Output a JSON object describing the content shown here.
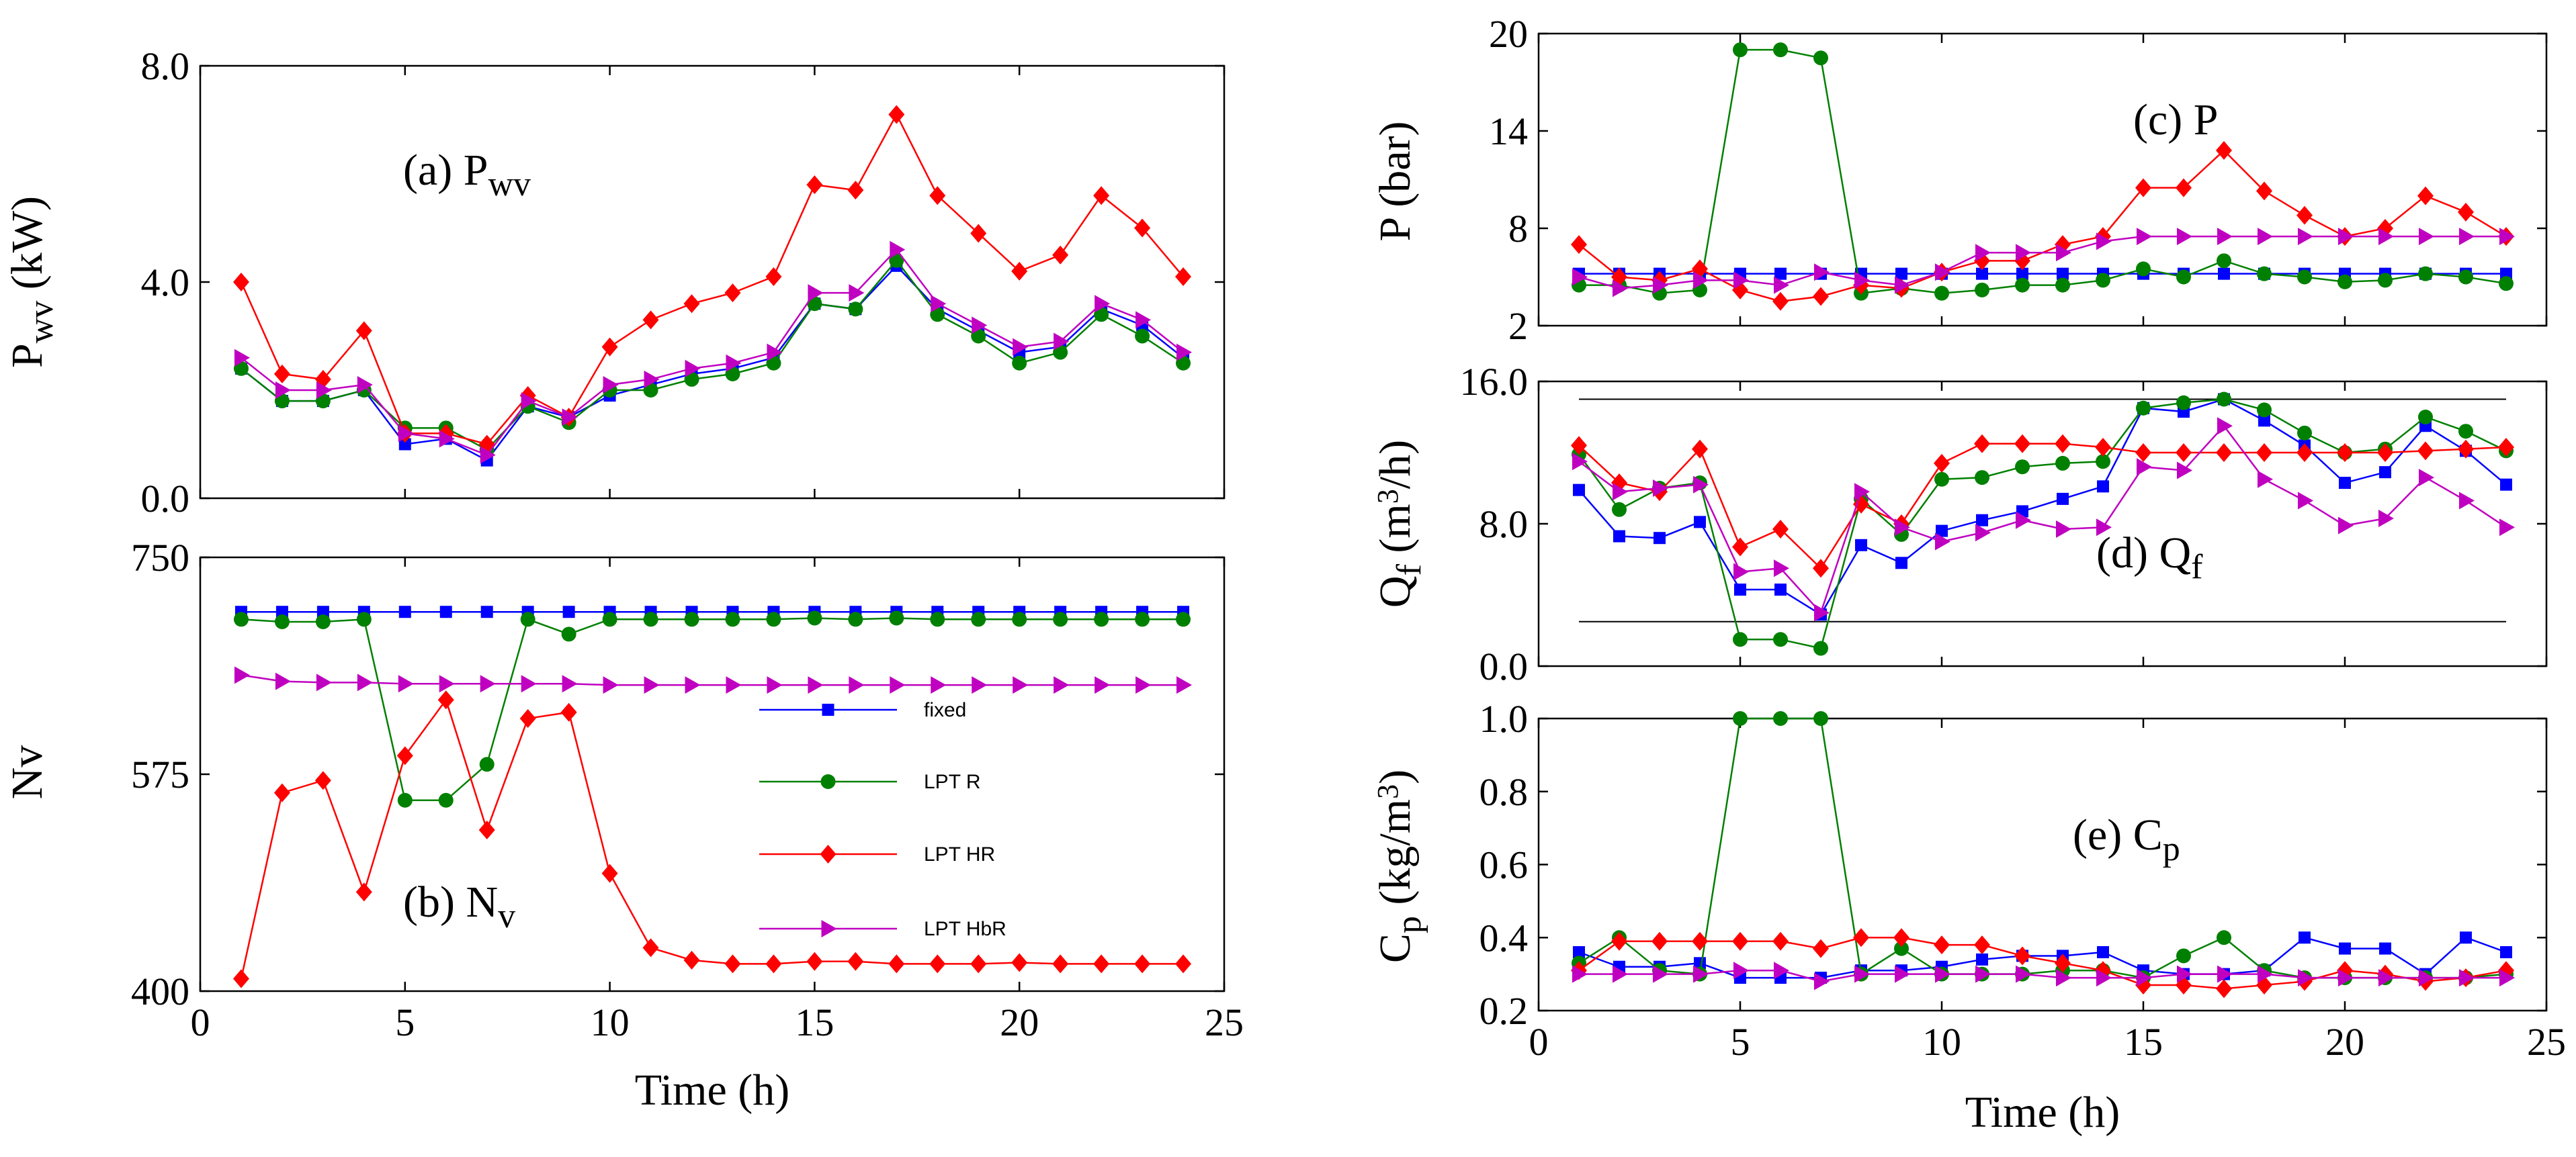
{
  "chart_data": [
    {
      "id": "pwv",
      "type": "line",
      "panel_label": {
        "main": "(a) P",
        "sub": "wv"
      },
      "ylabel": {
        "main": "P",
        "sub": "wv",
        "rest": "(kW)"
      },
      "xlabel": "",
      "xlim": [
        0,
        25
      ],
      "ylim": [
        0,
        8
      ],
      "yticks": [
        "0.0",
        "4.0",
        "8.0"
      ],
      "ytick_values": [
        0,
        4,
        8
      ],
      "x": [
        1,
        2,
        3,
        4,
        5,
        6,
        7,
        8,
        9,
        10,
        11,
        12,
        13,
        14,
        15,
        16,
        17,
        18,
        19,
        20,
        21,
        22,
        23,
        24
      ],
      "series": [
        {
          "name": "fixed",
          "values": [
            2.4,
            1.8,
            1.8,
            2.0,
            1.0,
            1.1,
            0.7,
            1.7,
            1.5,
            1.9,
            2.1,
            2.3,
            2.4,
            2.6,
            3.6,
            3.5,
            4.3,
            3.5,
            3.1,
            2.7,
            2.8,
            3.5,
            3.2,
            2.6
          ]
        },
        {
          "name": "LPTR",
          "values": [
            2.4,
            1.8,
            1.8,
            2.0,
            1.3,
            1.3,
            0.9,
            1.7,
            1.4,
            2.0,
            2.0,
            2.2,
            2.3,
            2.5,
            3.6,
            3.5,
            4.4,
            3.4,
            3.0,
            2.5,
            2.7,
            3.4,
            3.0,
            2.5
          ]
        },
        {
          "name": "LPTHR",
          "values": [
            4.0,
            2.3,
            2.2,
            3.1,
            1.2,
            1.2,
            1.0,
            1.9,
            1.5,
            2.8,
            3.3,
            3.6,
            3.8,
            4.1,
            5.8,
            5.7,
            7.1,
            5.6,
            4.9,
            4.2,
            4.5,
            5.6,
            5.0,
            4.1
          ]
        },
        {
          "name": "LPTHbR",
          "values": [
            2.6,
            2.0,
            2.0,
            2.1,
            1.2,
            1.1,
            0.8,
            1.8,
            1.5,
            2.1,
            2.2,
            2.4,
            2.5,
            2.7,
            3.8,
            3.8,
            4.6,
            3.6,
            3.2,
            2.8,
            2.9,
            3.6,
            3.3,
            2.7
          ]
        }
      ]
    },
    {
      "id": "nv",
      "type": "line",
      "panel_label": {
        "main": "(b) N",
        "sub": "v"
      },
      "ylabel": {
        "main": "Nv"
      },
      "xlabel": "Time (h)",
      "xlim": [
        0,
        25
      ],
      "ylim": [
        400,
        750
      ],
      "yticks": [
        "400",
        "575",
        "750"
      ],
      "ytick_values": [
        400,
        575,
        750
      ],
      "xticks": [
        "0",
        "5",
        "10",
        "15",
        "20",
        "25"
      ],
      "xtick_values": [
        0,
        5,
        10,
        15,
        20,
        25
      ],
      "x": [
        1,
        2,
        3,
        4,
        5,
        6,
        7,
        8,
        9,
        10,
        11,
        12,
        13,
        14,
        15,
        16,
        17,
        18,
        19,
        20,
        21,
        22,
        23,
        24
      ],
      "series": [
        {
          "name": "fixed",
          "values": [
            706,
            706,
            706,
            706,
            706,
            706,
            706,
            706,
            706,
            706,
            706,
            706,
            706,
            706,
            706,
            706,
            706,
            706,
            706,
            706,
            706,
            706,
            706,
            706
          ]
        },
        {
          "name": "LPTR",
          "values": [
            700,
            698,
            698,
            700,
            554,
            554,
            583,
            700,
            688,
            700,
            700,
            700,
            700,
            700,
            701,
            700,
            701,
            700,
            700,
            700,
            700,
            700,
            700,
            700
          ]
        },
        {
          "name": "LPTHR",
          "values": [
            410,
            560,
            570,
            480,
            590,
            635,
            530,
            620,
            625,
            495,
            435,
            425,
            422,
            422,
            424,
            424,
            422,
            422,
            422,
            423,
            422,
            422,
            422,
            422
          ]
        },
        {
          "name": "LPTHbR",
          "values": [
            655,
            650,
            649,
            649,
            648,
            648,
            648,
            648,
            648,
            647,
            647,
            647,
            647,
            647,
            647,
            647,
            647,
            647,
            647,
            647,
            647,
            647,
            647,
            647
          ]
        }
      ],
      "legend": {
        "placement": "center-right",
        "entries": [
          "fixed",
          "LPTR",
          "LPTHR",
          "LPTHbR"
        ],
        "labels": [
          "fixed",
          "LPT R",
          "LPT HR",
          "LPT HbR"
        ]
      }
    },
    {
      "id": "p",
      "type": "line",
      "panel_label": {
        "main": "(c) P"
      },
      "ylabel": {
        "main": "P (bar)"
      },
      "xlabel": "",
      "xlim": [
        0,
        25
      ],
      "ylim": [
        2,
        20
      ],
      "yticks": [
        "2",
        "8",
        "14",
        "20"
      ],
      "ytick_values": [
        2,
        8,
        14,
        20
      ],
      "x": [
        1,
        2,
        3,
        4,
        5,
        6,
        7,
        8,
        9,
        10,
        11,
        12,
        13,
        14,
        15,
        16,
        17,
        18,
        19,
        20,
        21,
        22,
        23,
        24
      ],
      "series": [
        {
          "name": "fixed",
          "values": [
            5.2,
            5.2,
            5.2,
            5.2,
            5.2,
            5.2,
            5.2,
            5.2,
            5.2,
            5.2,
            5.2,
            5.2,
            5.2,
            5.2,
            5.2,
            5.2,
            5.2,
            5.2,
            5.2,
            5.2,
            5.2,
            5.2,
            5.2,
            5.2
          ]
        },
        {
          "name": "LPTR",
          "values": [
            4.5,
            4.5,
            4.0,
            4.2,
            19.0,
            19.0,
            18.5,
            4.0,
            4.3,
            4.0,
            4.2,
            4.5,
            4.5,
            4.8,
            5.5,
            5.0,
            6.0,
            5.2,
            5.0,
            4.7,
            4.8,
            5.2,
            5.0,
            4.6
          ]
        },
        {
          "name": "LPTHR",
          "values": [
            7.0,
            5.0,
            4.8,
            5.5,
            4.2,
            3.5,
            3.8,
            4.5,
            4.3,
            5.3,
            6.0,
            6.0,
            7.0,
            7.5,
            10.5,
            10.5,
            12.8,
            10.3,
            8.8,
            7.5,
            8.0,
            10.0,
            9.0,
            7.5
          ]
        },
        {
          "name": "LPTHbR",
          "values": [
            5.0,
            4.3,
            4.5,
            4.8,
            4.8,
            4.5,
            5.3,
            4.8,
            4.5,
            5.3,
            6.5,
            6.5,
            6.5,
            7.2,
            7.5,
            7.5,
            7.5,
            7.5,
            7.5,
            7.5,
            7.5,
            7.5,
            7.5,
            7.5
          ]
        }
      ]
    },
    {
      "id": "qf",
      "type": "line",
      "panel_label": {
        "main": "(d) Q",
        "sub": "f"
      },
      "ylabel": {
        "main": "Q",
        "sub": "f",
        "rest": "(m",
        "sup": "3",
        "rest2": "/h)"
      },
      "xlabel": "",
      "xlim": [
        0,
        25
      ],
      "ylim": [
        0,
        16
      ],
      "yticks": [
        "0.0",
        "8.0",
        "16.0"
      ],
      "ytick_values": [
        0,
        8,
        16
      ],
      "x": [
        1,
        2,
        3,
        4,
        5,
        6,
        7,
        8,
        9,
        10,
        11,
        12,
        13,
        14,
        15,
        16,
        17,
        18,
        19,
        20,
        21,
        22,
        23,
        24
      ],
      "reference_lines": [
        15.0,
        2.5
      ],
      "series": [
        {
          "name": "fixed",
          "values": [
            9.9,
            7.3,
            7.2,
            8.1,
            4.3,
            4.3,
            2.9,
            6.8,
            5.8,
            7.6,
            8.2,
            8.7,
            9.4,
            10.1,
            14.5,
            14.3,
            15.0,
            13.8,
            12.4,
            10.3,
            10.9,
            13.5,
            12.1,
            10.2
          ]
        },
        {
          "name": "LPTR",
          "values": [
            11.9,
            8.8,
            10.0,
            10.3,
            1.5,
            1.5,
            1.0,
            9.4,
            7.4,
            10.5,
            10.6,
            11.2,
            11.4,
            11.5,
            14.5,
            14.8,
            15.0,
            14.4,
            13.1,
            12.0,
            12.2,
            14.0,
            13.2,
            12.1
          ]
        },
        {
          "name": "LPTHR",
          "values": [
            12.4,
            10.3,
            9.8,
            12.2,
            6.7,
            7.7,
            5.5,
            9.1,
            8.0,
            11.4,
            12.5,
            12.5,
            12.5,
            12.3,
            12.0,
            12.0,
            12.0,
            12.0,
            12.0,
            12.0,
            12.0,
            12.1,
            12.2,
            12.3
          ]
        },
        {
          "name": "LPTHbR",
          "values": [
            11.5,
            9.8,
            10.0,
            10.2,
            5.3,
            5.5,
            3.0,
            9.8,
            7.8,
            7.0,
            7.5,
            8.2,
            7.7,
            7.8,
            11.2,
            11.0,
            13.5,
            10.5,
            9.3,
            7.9,
            8.3,
            10.6,
            9.3,
            7.8
          ]
        }
      ]
    },
    {
      "id": "cp",
      "type": "line",
      "panel_label": {
        "main": "(e) C",
        "sub": "p"
      },
      "ylabel": {
        "main": "C",
        "sub": "p",
        "rest": "(kg/m",
        "sup": "3",
        "rest2": ")"
      },
      "xlabel": "Time (h)",
      "xlim": [
        0,
        25
      ],
      "ylim": [
        0.2,
        1.0
      ],
      "yticks": [
        "0.2",
        "0.4",
        "0.6",
        "0.8",
        "1.0"
      ],
      "ytick_values": [
        0.2,
        0.4,
        0.6,
        0.8,
        1.0
      ],
      "xticks": [
        "0",
        "5",
        "10",
        "15",
        "20",
        "25"
      ],
      "xtick_values": [
        0,
        5,
        10,
        15,
        20,
        25
      ],
      "x": [
        1,
        2,
        3,
        4,
        5,
        6,
        7,
        8,
        9,
        10,
        11,
        12,
        13,
        14,
        15,
        16,
        17,
        18,
        19,
        20,
        21,
        22,
        23,
        24
      ],
      "series": [
        {
          "name": "fixed",
          "values": [
            0.36,
            0.32,
            0.32,
            0.33,
            0.29,
            0.29,
            0.29,
            0.31,
            0.31,
            0.32,
            0.34,
            0.35,
            0.35,
            0.36,
            0.31,
            0.3,
            0.3,
            0.31,
            0.4,
            0.37,
            0.37,
            0.3,
            0.4,
            0.36
          ]
        },
        {
          "name": "LPTR",
          "values": [
            0.33,
            0.4,
            0.31,
            0.3,
            1.0,
            1.0,
            1.0,
            0.3,
            0.37,
            0.3,
            0.3,
            0.3,
            0.31,
            0.31,
            0.29,
            0.35,
            0.4,
            0.31,
            0.29,
            0.29,
            0.29,
            0.29,
            0.29,
            0.3
          ]
        },
        {
          "name": "LPTHR",
          "values": [
            0.31,
            0.39,
            0.39,
            0.39,
            0.39,
            0.39,
            0.37,
            0.4,
            0.4,
            0.38,
            0.38,
            0.35,
            0.33,
            0.31,
            0.27,
            0.27,
            0.26,
            0.27,
            0.28,
            0.31,
            0.3,
            0.28,
            0.29,
            0.31
          ]
        },
        {
          "name": "LPTHbR",
          "values": [
            0.3,
            0.3,
            0.3,
            0.3,
            0.31,
            0.31,
            0.28,
            0.3,
            0.3,
            0.3,
            0.3,
            0.3,
            0.29,
            0.29,
            0.29,
            0.3,
            0.3,
            0.3,
            0.29,
            0.29,
            0.29,
            0.29,
            0.29,
            0.29
          ]
        }
      ]
    }
  ],
  "series_styles": {
    "fixed": {
      "color": "#0000ff",
      "marker": "square"
    },
    "LPTR": {
      "color": "#008000",
      "marker": "circle"
    },
    "LPTHR": {
      "color": "#ff0000",
      "marker": "diamond"
    },
    "LPTHbR": {
      "color": "#c000c0",
      "marker": "triangle-right"
    }
  }
}
